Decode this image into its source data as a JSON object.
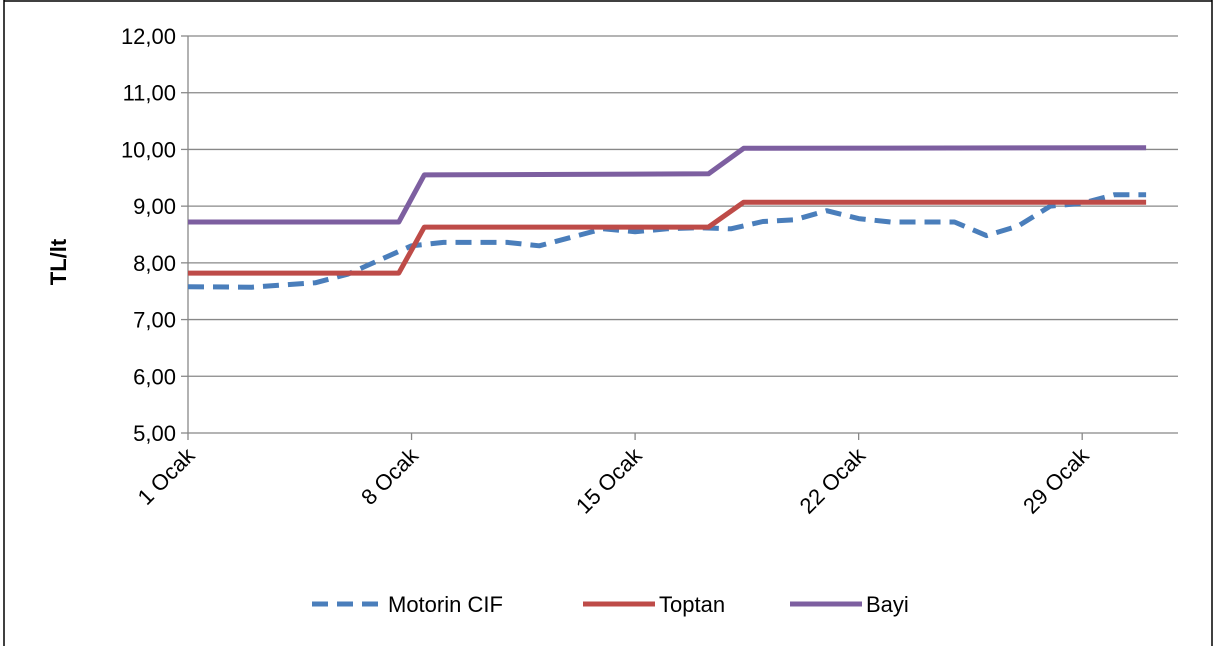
{
  "chart_data": {
    "type": "line",
    "title": "",
    "xlabel": "",
    "ylabel": "TL/lt",
    "ylim": [
      5,
      12
    ],
    "yticks": [
      5,
      6,
      7,
      8,
      9,
      10,
      11,
      12
    ],
    "ytick_labels": [
      "5,00",
      "6,00",
      "7,00",
      "8,00",
      "9,00",
      "10,00",
      "11,00",
      "12,00"
    ],
    "xlim": [
      1,
      32
    ],
    "xticks": [
      1,
      8,
      15,
      22,
      29
    ],
    "xtick_labels": [
      "1 Ocak",
      "8 Ocak",
      "15 Ocak",
      "22 Ocak",
      "29 Ocak"
    ],
    "grid": "horizontal",
    "legend": "bottom",
    "series": [
      {
        "name": "Motorin CIF",
        "color": "#4a7ebb",
        "style": "dashed",
        "x": [
          1,
          3,
          5,
          6,
          7,
          8,
          9,
          11,
          12,
          13,
          14,
          15,
          16,
          17,
          18,
          19,
          20,
          21,
          22,
          23,
          24,
          25,
          26,
          27,
          28,
          29,
          30,
          31
        ],
        "y": [
          7.58,
          7.57,
          7.65,
          7.8,
          8.05,
          8.3,
          8.36,
          8.36,
          8.3,
          8.45,
          8.6,
          8.55,
          8.6,
          8.62,
          8.6,
          8.73,
          8.76,
          8.92,
          8.78,
          8.72,
          8.72,
          8.72,
          8.48,
          8.65,
          9.0,
          9.05,
          9.2,
          9.2
        ]
      },
      {
        "name": "Toptan",
        "color": "#be4b48",
        "style": "solid",
        "x": [
          1,
          7.6,
          8.4,
          17.3,
          18.4,
          31
        ],
        "y": [
          7.82,
          7.82,
          8.63,
          8.63,
          9.07,
          9.07
        ]
      },
      {
        "name": "Bayi",
        "color": "#7d5fa0",
        "style": "solid",
        "x": [
          1,
          7.6,
          8.4,
          17.3,
          18.4,
          31
        ],
        "y": [
          8.72,
          8.72,
          9.55,
          9.57,
          10.02,
          10.03
        ]
      }
    ]
  }
}
